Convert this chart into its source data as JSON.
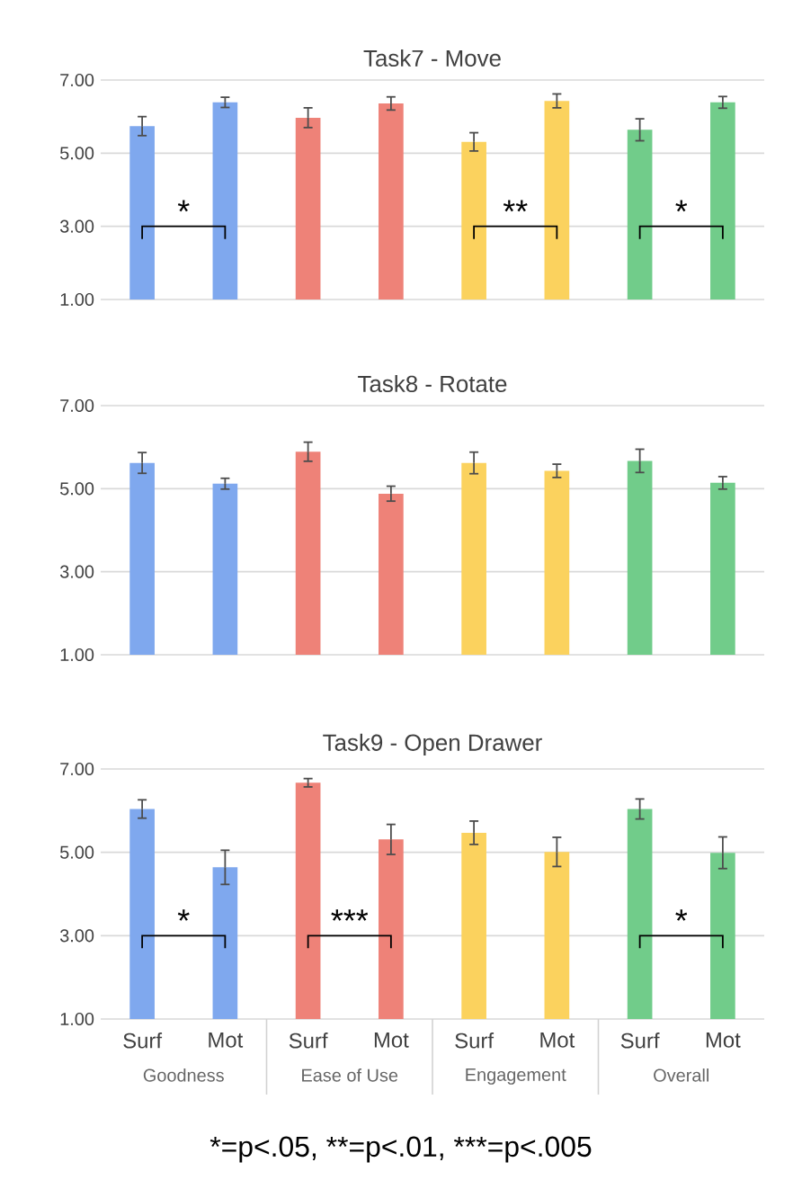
{
  "chart_data": [
    {
      "type": "bar",
      "title": "Task7 - Move",
      "categories": [
        null,
        null,
        null,
        null,
        null,
        null,
        null,
        null
      ],
      "ylim": [
        1,
        7
      ],
      "yticks": [
        {
          "value": 1,
          "label": "1.00"
        },
        {
          "value": 3,
          "label": "3.00"
        },
        {
          "value": 5,
          "label": "5.00"
        },
        {
          "value": 7,
          "label": "7.00"
        }
      ],
      "grid": "y",
      "tick_labels": "y",
      "series": [
        {
          "color": "#7fa8ee",
          "values": [
            5.74,
            6.39,
            null,
            null,
            null,
            null,
            null,
            null
          ],
          "errors": [
            0.26,
            0.14,
            null,
            null,
            null,
            null,
            null,
            null
          ]
        },
        {
          "color": "#ee8278",
          "values": [
            null,
            null,
            5.97,
            6.36,
            null,
            null,
            null,
            null
          ],
          "errors": [
            null,
            null,
            0.27,
            0.18,
            null,
            null,
            null,
            null
          ]
        },
        {
          "color": "#fbd25e",
          "values": [
            null,
            null,
            null,
            null,
            5.31,
            6.43,
            null,
            null
          ],
          "errors": [
            null,
            null,
            null,
            null,
            0.25,
            0.19,
            null,
            null
          ]
        },
        {
          "color": "#71cc8a",
          "values": [
            null,
            null,
            null,
            null,
            null,
            null,
            5.64,
            6.39
          ],
          "errors": [
            null,
            null,
            null,
            null,
            null,
            null,
            0.3,
            0.16
          ]
        }
      ],
      "annotations": [
        "*",
        "**",
        "*"
      ]
    },
    {
      "type": "bar",
      "title": "Task8 - Rotate",
      "categories": [
        null,
        null,
        null,
        null,
        null,
        null,
        null,
        null
      ],
      "ylim": [
        1,
        7
      ],
      "yticks": [
        {
          "value": 1,
          "label": "1.00"
        },
        {
          "value": 3,
          "label": "3.00"
        },
        {
          "value": 5,
          "label": "5.00"
        },
        {
          "value": 7,
          "label": "7.00"
        }
      ],
      "grid": "y",
      "tick_labels": "y",
      "series": [
        {
          "color": "#7fa8ee",
          "values": [
            5.62,
            5.12,
            null,
            null,
            null,
            null,
            null,
            null
          ],
          "errors": [
            0.25,
            0.13,
            null,
            null,
            null,
            null,
            null,
            null
          ]
        },
        {
          "color": "#ee8278",
          "values": [
            null,
            null,
            5.89,
            4.88,
            null,
            null,
            null,
            null
          ],
          "errors": [
            null,
            null,
            0.23,
            0.18,
            null,
            null,
            null,
            null
          ]
        },
        {
          "color": "#fbd25e",
          "values": [
            null,
            null,
            null,
            null,
            5.62,
            5.43,
            null,
            null
          ],
          "errors": [
            null,
            null,
            null,
            null,
            0.26,
            0.16,
            null,
            null
          ]
        },
        {
          "color": "#71cc8a",
          "values": [
            null,
            null,
            null,
            null,
            null,
            null,
            5.67,
            5.14
          ],
          "errors": [
            null,
            null,
            null,
            null,
            null,
            null,
            0.28,
            0.15
          ]
        }
      ]
    },
    {
      "type": "bar",
      "title": "Task9 - Open Drawer",
      "categories": [
        "Surf",
        "Mot",
        "Surf",
        "Mot",
        "Surf",
        "Mot",
        "Surf",
        "Mot"
      ],
      "ylim": [
        1,
        7
      ],
      "yticks": [
        {
          "value": 1,
          "label": "1.00"
        },
        {
          "value": 3,
          "label": "3.00"
        },
        {
          "value": 5,
          "label": "5.00"
        },
        {
          "value": 7,
          "label": "7.00"
        }
      ],
      "grid": "y",
      "series": [
        {
          "name": "Goodness",
          "color": "#7fa8ee",
          "values": [
            6.04,
            4.64,
            null,
            null,
            null,
            null,
            null,
            null
          ],
          "errors": [
            0.22,
            0.41,
            null,
            null,
            null,
            null,
            null,
            null
          ]
        },
        {
          "name": "Ease of Use",
          "color": "#ee8278",
          "values": [
            null,
            null,
            6.67,
            5.31,
            null,
            null,
            null,
            null
          ],
          "errors": [
            null,
            null,
            0.1,
            0.36,
            null,
            null,
            null,
            null
          ]
        },
        {
          "name": "Engagement",
          "color": "#fbd25e",
          "values": [
            null,
            null,
            null,
            null,
            5.47,
            5.01,
            null,
            null
          ],
          "errors": [
            null,
            null,
            null,
            null,
            0.28,
            0.35,
            null,
            null
          ]
        },
        {
          "name": "Overall",
          "color": "#71cc8a",
          "values": [
            null,
            null,
            null,
            null,
            null,
            null,
            6.04,
            4.99
          ],
          "errors": [
            null,
            null,
            null,
            null,
            null,
            null,
            0.24,
            0.38
          ]
        }
      ],
      "annotations": [
        "*",
        "***",
        "*",
        "*=p<.05,",
        "**=p<.01,",
        "***=p<.005"
      ]
    }
  ]
}
